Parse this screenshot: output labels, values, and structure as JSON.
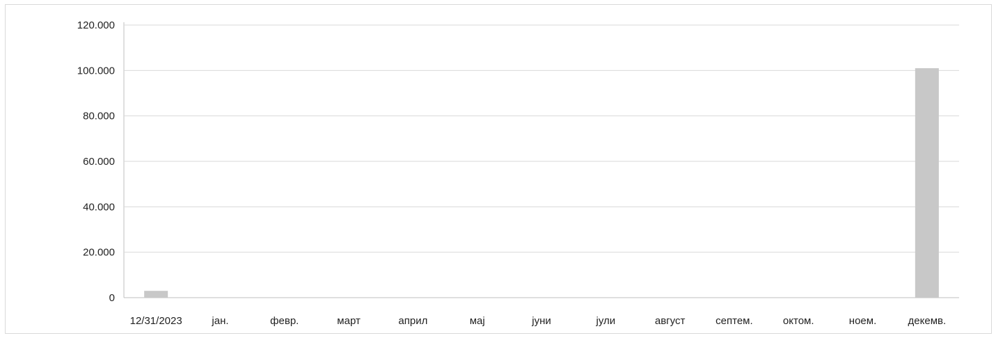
{
  "chart_data": {
    "type": "bar",
    "title": "",
    "xlabel": "",
    "ylabel": "",
    "categories": [
      "12/31/2023",
      "јан.",
      "февр.",
      "март",
      "април",
      "мај",
      "јуни",
      "јули",
      "август",
      "септем.",
      "октом.",
      "ноем.",
      "декемв."
    ],
    "values": [
      3000,
      0,
      0,
      0,
      0,
      0,
      0,
      0,
      0,
      0,
      0,
      0,
      101000
    ],
    "ylim": [
      0,
      120000
    ],
    "yticks": [
      0,
      20000,
      40000,
      60000,
      80000,
      100000,
      120000
    ],
    "ytick_labels": [
      "0",
      "20.000",
      "40.000",
      "60.000",
      "80.000",
      "100.000",
      "120.000"
    ],
    "grid": true,
    "legend": "none",
    "colors": {
      "bar": "#c8c8c8",
      "grid": "#d9d9d9",
      "axis": "#bfbfbf",
      "text": "#222222"
    }
  }
}
